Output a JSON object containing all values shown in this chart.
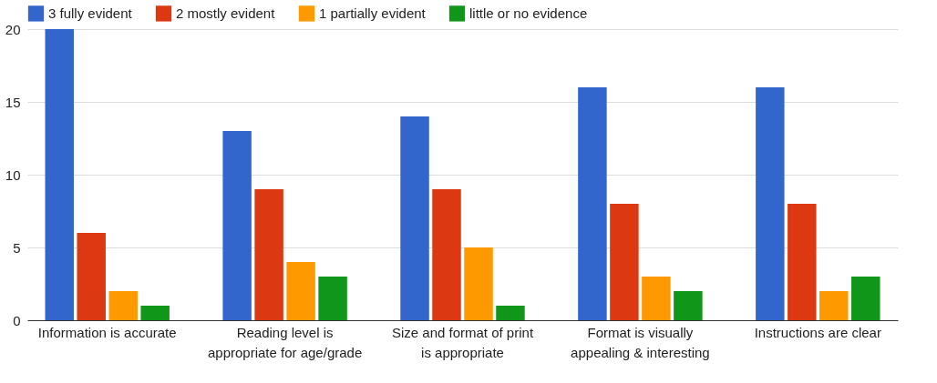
{
  "chart_data": {
    "type": "bar",
    "categories": [
      "Information is accurate",
      "Reading level is appropriate for age/grade",
      "Size and format of print is appropriate",
      "Format is visually appealing & interesting",
      "Instructions are clear"
    ],
    "series": [
      {
        "name": "3 fully evident",
        "color": "#3366cc",
        "values": [
          20,
          13,
          14,
          16,
          16
        ]
      },
      {
        "name": "2 mostly evident",
        "color": "#dc3912",
        "values": [
          6,
          9,
          9,
          8,
          8
        ]
      },
      {
        "name": "1 partially evident",
        "color": "#ff9900",
        "values": [
          2,
          4,
          5,
          3,
          2
        ]
      },
      {
        "name": "little or no evidence",
        "color": "#109618",
        "values": [
          1,
          3,
          1,
          2,
          3
        ]
      }
    ],
    "ylim": [
      0,
      20
    ],
    "yticks": [
      0,
      5,
      10,
      15,
      20
    ],
    "grid": "y",
    "legend": "top left"
  }
}
